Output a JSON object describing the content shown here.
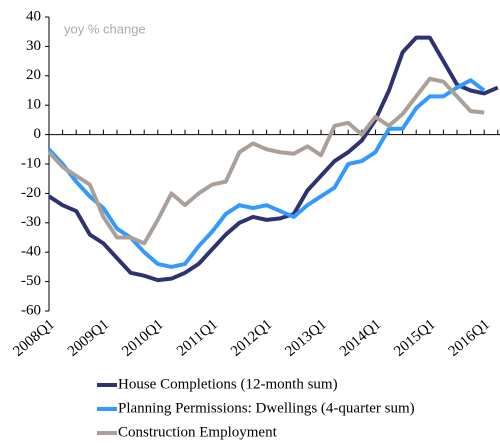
{
  "chart_data": {
    "type": "line",
    "annotation": "yoy % change",
    "categories": [
      "2008Q1",
      null,
      null,
      null,
      "2009Q1",
      null,
      null,
      null,
      "2010Q1",
      null,
      null,
      null,
      "2011Q1",
      null,
      null,
      null,
      "2012Q1",
      null,
      null,
      null,
      "2013Q1",
      null,
      null,
      null,
      "2014Q1",
      null,
      null,
      null,
      "2015Q1",
      null,
      null,
      null,
      "2016Q1",
      null
    ],
    "series": [
      {
        "name": "House Completions (12-month sum)",
        "color": "#2e3270",
        "values": [
          -21,
          -24,
          -26,
          -34,
          -37,
          -42,
          -47,
          -48,
          -49.5,
          -49,
          -47,
          -44,
          -39,
          -34,
          -30,
          -28,
          -29,
          -28.5,
          -27,
          -19,
          -14,
          -9,
          -6,
          -2,
          5,
          15,
          28,
          33,
          33,
          25,
          17,
          15,
          14,
          16
        ]
      },
      {
        "name": "Planning Permissions: Dwellings (4-quarter sum)",
        "color": "#3399ff",
        "values": [
          -5,
          -10,
          -16,
          -21,
          -25,
          -32,
          -35,
          -40,
          -44,
          -45,
          -44,
          -38,
          -33,
          -27,
          -24,
          -25,
          -24,
          -26,
          -28,
          -24,
          -21,
          -18,
          -10,
          -9,
          -6,
          2,
          2,
          9,
          13,
          13,
          16,
          18.5,
          15,
          null
        ]
      },
      {
        "name": "Construction Employment",
        "color": "#aaa099",
        "values": [
          -6,
          -11,
          -14,
          -17,
          -28,
          -35,
          -35,
          -37,
          -29,
          -20,
          -24,
          -20,
          -17,
          -16,
          -6,
          -3,
          -5,
          -6,
          -6.5,
          -4,
          -7,
          3,
          4,
          0,
          6,
          3,
          7,
          13,
          19,
          18,
          13,
          8,
          7.5,
          null
        ]
      }
    ],
    "ylim": [
      -60,
      40
    ],
    "yticks": [
      -60,
      -50,
      -40,
      -30,
      -20,
      -10,
      0,
      10,
      20,
      30,
      40
    ]
  }
}
